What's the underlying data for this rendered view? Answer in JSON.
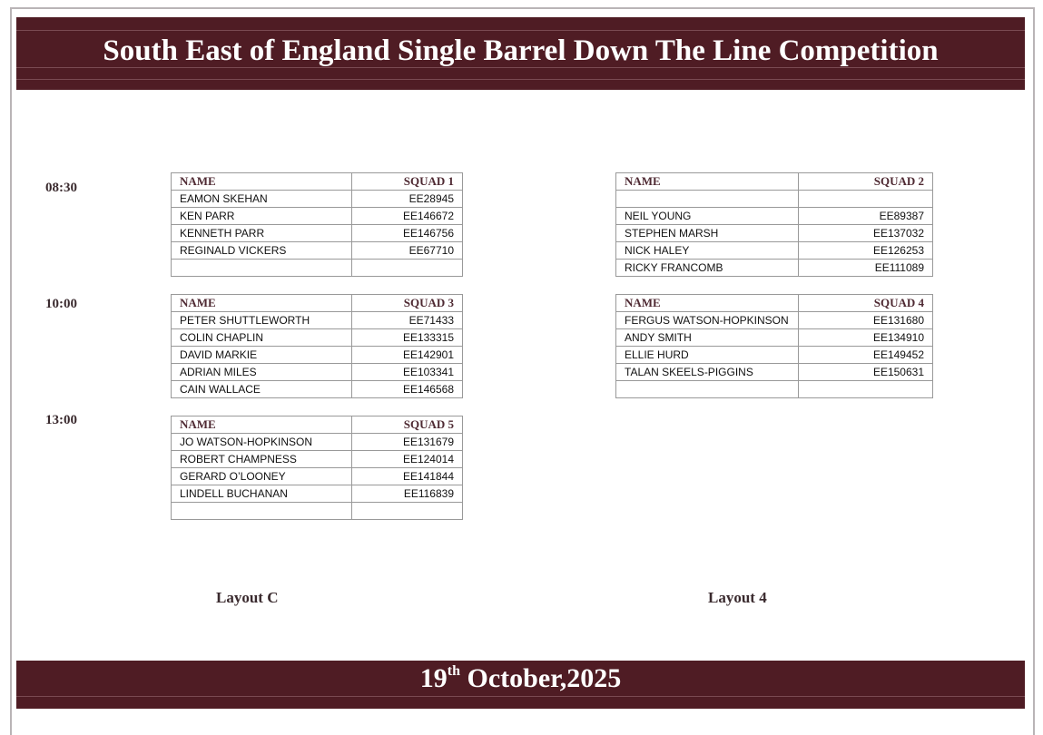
{
  "header": {
    "title": "South East of England Single Barrel Down The Line Competition"
  },
  "footer": {
    "day": "19",
    "day_suffix": "th",
    "date_rest": " October,2025"
  },
  "times": [
    "08:30",
    "10:00",
    "13:00"
  ],
  "squads": [
    {
      "name_header": "NAME",
      "squad_header": "SQUAD 1",
      "rows": [
        [
          "EAMON SKEHAN",
          "EE28945"
        ],
        [
          "KEN PARR",
          "EE146672"
        ],
        [
          "KENNETH PARR",
          "EE146756"
        ],
        [
          "REGINALD VICKERS",
          "EE67710"
        ],
        [
          "",
          ""
        ]
      ]
    },
    {
      "name_header": "NAME",
      "squad_header": "SQUAD 2",
      "rows": [
        [
          "",
          ""
        ],
        [
          "NEIL YOUNG",
          "EE89387"
        ],
        [
          "STEPHEN MARSH",
          "EE137032"
        ],
        [
          "NICK HALEY",
          "EE126253"
        ],
        [
          "RICKY FRANCOMB",
          "EE111089"
        ]
      ]
    },
    {
      "name_header": "NAME",
      "squad_header": "SQUAD 3",
      "rows": [
        [
          "PETER SHUTTLEWORTH",
          "EE71433"
        ],
        [
          "COLIN CHAPLIN",
          "EE133315"
        ],
        [
          "DAVID MARKIE",
          "EE142901"
        ],
        [
          "ADRIAN MILES",
          "EE103341"
        ],
        [
          "CAIN WALLACE",
          "EE146568"
        ]
      ]
    },
    {
      "name_header": "NAME",
      "squad_header": "SQUAD 4",
      "rows": [
        [
          "FERGUS WATSON-HOPKINSON",
          "EE131680"
        ],
        [
          "ANDY SMITH",
          "EE134910"
        ],
        [
          "ELLIE HURD",
          "EE149452"
        ],
        [
          "TALAN SKEELS-PIGGINS",
          "EE150631"
        ],
        [
          "",
          ""
        ]
      ]
    },
    {
      "name_header": "NAME",
      "squad_header": "SQUAD 5",
      "rows": [
        [
          "JO WATSON-HOPKINSON",
          "EE131679"
        ],
        [
          "ROBERT CHAMPNESS",
          "EE124014"
        ],
        [
          "GERARD O’LOONEY",
          "EE141844"
        ],
        [
          "LINDELL BUCHANAN",
          "EE116839"
        ],
        [
          "",
          ""
        ]
      ]
    }
  ],
  "layouts": [
    "Layout C",
    "Layout 4"
  ],
  "colors": {
    "band": "#4f1c24",
    "heading_text": "#4f2a33"
  }
}
